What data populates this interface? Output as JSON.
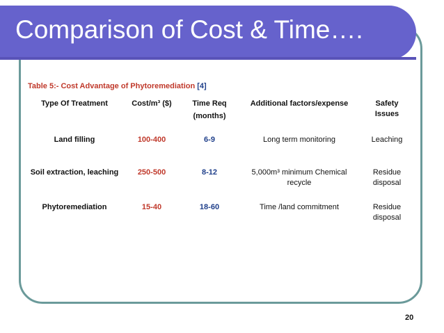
{
  "slide": {
    "title": "Comparison of Cost & Time….",
    "page_number": "20",
    "colors": {
      "title_bar": "#6662cc",
      "frame_border": "#6b9a9a",
      "accent_red": "#c0392b",
      "accent_blue": "#1f3f8a"
    }
  },
  "table": {
    "caption": "Table 5:- Cost Advantage of Phytoremediation",
    "reference": "[4]",
    "headers": {
      "treatment": "Type Of Treatment",
      "cost": "Cost/m³ ($)",
      "time_line1": "Time Req",
      "time_line2": "(months)",
      "factors": "Additional factors/expense",
      "safety_line1": "Safety",
      "safety_line2": "Issues"
    },
    "rows": [
      {
        "treatment": "Land filling",
        "cost": "100-400",
        "time": "6-9",
        "factors_line1": "Long term monitoring",
        "factors_line2": "",
        "safety_line1": "Leaching",
        "safety_line2": ""
      },
      {
        "treatment": "Soil extraction, leaching",
        "cost": "250-500",
        "time": "8-12",
        "factors_line1": "5,000m³ minimum Chemical",
        "factors_line2": "recycle",
        "safety_line1": "Residue",
        "safety_line2": "disposal"
      },
      {
        "treatment": "Phytoremediation",
        "cost": "15-40",
        "time": "18-60",
        "factors_line1": "Time /land commitment",
        "factors_line2": "",
        "safety_line1": "Residue",
        "safety_line2": "disposal"
      }
    ]
  }
}
